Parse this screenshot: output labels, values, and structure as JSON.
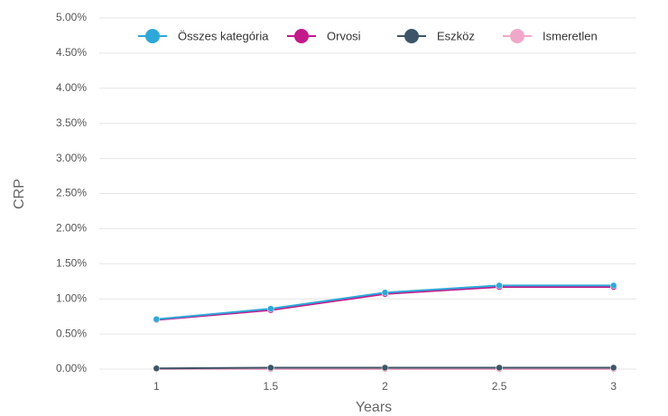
{
  "chart_data": {
    "type": "line",
    "x_label": "Years",
    "y_label": "CRP",
    "x": [
      1,
      1.5,
      2,
      2.5,
      3
    ],
    "series": [
      {
        "name": "Összes kategória",
        "color": "#2ea8d8",
        "values": [
          0.71,
          0.86,
          1.09,
          1.19,
          1.19
        ]
      },
      {
        "name": "Orvosi",
        "color": "#c3198b",
        "values": [
          0.7,
          0.84,
          1.07,
          1.17,
          1.17
        ]
      },
      {
        "name": "Eszköz",
        "color": "#3d5566",
        "values": [
          0.01,
          0.02,
          0.02,
          0.02,
          0.02
        ]
      },
      {
        "name": "Ismeretlen",
        "color": "#f0a8c8",
        "values": [
          0,
          0,
          0,
          0,
          0
        ]
      }
    ],
    "xlim": [
      0.75,
      3.1
    ],
    "xticks": [
      1,
      1.5,
      2,
      2.5,
      3
    ],
    "ylim": [
      0,
      5
    ],
    "yticks": [
      {
        "value": 0,
        "label": "0.00%"
      },
      {
        "value": 0.5,
        "label": "0.50%"
      },
      {
        "value": 1,
        "label": "1.00%"
      },
      {
        "value": 1.5,
        "label": "1.50%"
      },
      {
        "value": 2,
        "label": "2.00%"
      },
      {
        "value": 2.5,
        "label": "2.50%"
      },
      {
        "value": 3,
        "label": "3.00%"
      },
      {
        "value": 3.5,
        "label": "3.50%"
      },
      {
        "value": 4,
        "label": "4.00%"
      },
      {
        "value": 4.5,
        "label": "4.50%"
      },
      {
        "value": 5,
        "label": "5.00%"
      }
    ],
    "grid": true,
    "legend": "top"
  }
}
